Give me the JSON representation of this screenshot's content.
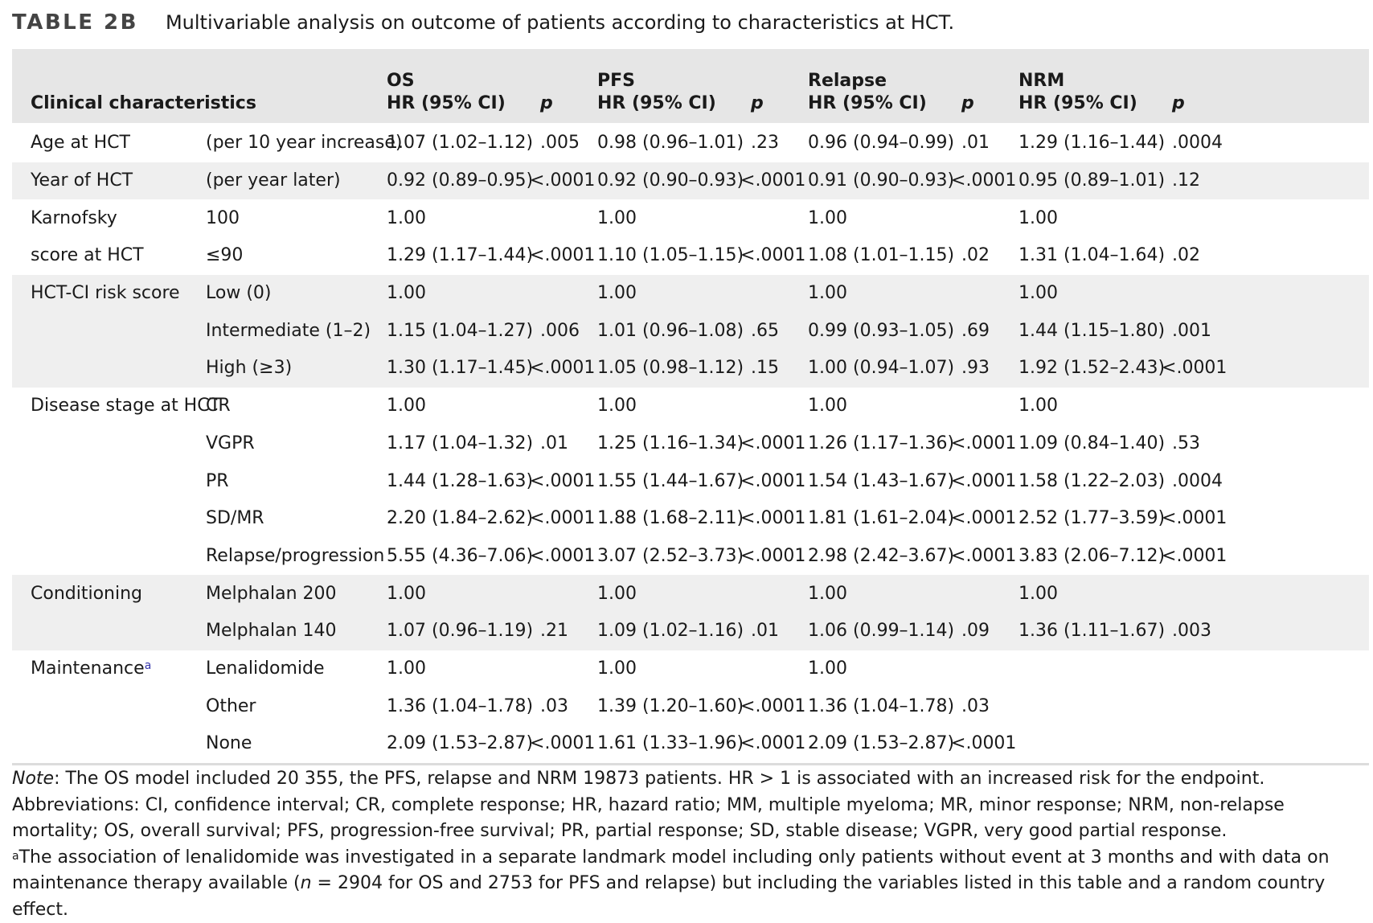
{
  "caption": {
    "label": "TABLE 2B",
    "title": "Multivariable analysis on outcome of patients according to characteristics at HCT."
  },
  "header": {
    "clinical_characteristics": "Clinical characteristics",
    "groups": [
      {
        "name": "OS",
        "hr": "HR (95% CI)",
        "p": "p"
      },
      {
        "name": "PFS",
        "hr": "HR (95% CI)",
        "p": "p"
      },
      {
        "name": "Relapse",
        "hr": "HR (95% CI)",
        "p": "p"
      },
      {
        "name": "NRM",
        "hr": "HR (95% CI)",
        "p": "p"
      }
    ]
  },
  "rows": [
    {
      "char": "Age at HCT",
      "sub": "(per 10 year increase)",
      "v": [
        "1.07 (1.02–1.12)",
        ".005",
        "0.98 (0.96–1.01)",
        ".23",
        "0.96 (0.94–0.99)",
        ".01",
        "1.29 (1.16–1.44)",
        ".0004"
      ]
    },
    {
      "char": "Year of HCT",
      "sub": "(per year later)",
      "v": [
        "0.92 (0.89–0.95)",
        "<.0001",
        "0.92 (0.90–0.93)",
        "<.0001",
        "0.91 (0.90–0.93)",
        "<.0001",
        "0.95 (0.89–1.01)",
        ".12"
      ]
    },
    {
      "char": "Karnofsky",
      "sub": "100",
      "v": [
        "1.00",
        "",
        "1.00",
        "",
        "1.00",
        "",
        "1.00",
        ""
      ]
    },
    {
      "char": "score at HCT",
      "sub": "≤90",
      "v": [
        "1.29 (1.17–1.44)",
        "<.0001",
        "1.10 (1.05–1.15)",
        "<.0001",
        "1.08 (1.01–1.15)",
        ".02",
        "1.31 (1.04–1.64)",
        ".02"
      ]
    },
    {
      "char": "HCT-CI risk score",
      "sub": "Low (0)",
      "v": [
        "1.00",
        "",
        "1.00",
        "",
        "1.00",
        "",
        "1.00",
        ""
      ]
    },
    {
      "char": "",
      "sub": "Intermediate (1–2)",
      "v": [
        "1.15 (1.04–1.27)",
        ".006",
        "1.01 (0.96–1.08)",
        ".65",
        "0.99 (0.93–1.05)",
        ".69",
        "1.44 (1.15–1.80)",
        ".001"
      ]
    },
    {
      "char": "",
      "sub": "High (≥3)",
      "v": [
        "1.30 (1.17–1.45)",
        "<.0001",
        "1.05 (0.98–1.12)",
        ".15",
        "1.00 (0.94–1.07)",
        ".93",
        "1.92 (1.52–2.43)",
        "<.0001"
      ]
    },
    {
      "char": "Disease stage at HCT",
      "sub": "CR",
      "v": [
        "1.00",
        "",
        "1.00",
        "",
        "1.00",
        "",
        "1.00",
        ""
      ]
    },
    {
      "char": "",
      "sub": "VGPR",
      "v": [
        "1.17 (1.04–1.32)",
        ".01",
        "1.25 (1.16–1.34)",
        "<.0001",
        "1.26 (1.17–1.36)",
        "<.0001",
        "1.09 (0.84–1.40)",
        ".53"
      ]
    },
    {
      "char": "",
      "sub": "PR",
      "v": [
        "1.44 (1.28–1.63)",
        "<.0001",
        "1.55 (1.44–1.67)",
        "<.0001",
        "1.54 (1.43–1.67)",
        "<.0001",
        "1.58 (1.22–2.03)",
        ".0004"
      ]
    },
    {
      "char": "",
      "sub": "SD/MR",
      "v": [
        "2.20 (1.84–2.62)",
        "<.0001",
        "1.88 (1.68–2.11)",
        "<.0001",
        "1.81 (1.61–2.04)",
        "<.0001",
        "2.52 (1.77–3.59)",
        "<.0001"
      ]
    },
    {
      "char": "",
      "sub": "Relapse/progression",
      "v": [
        "5.55 (4.36–7.06)",
        "<.0001",
        "3.07 (2.52–3.73)",
        "<.0001",
        "2.98 (2.42–3.67)",
        "<.0001",
        "3.83 (2.06–7.12)",
        "<.0001"
      ]
    },
    {
      "char": "Conditioning",
      "sub": "Melphalan 200",
      "v": [
        "1.00",
        "",
        "1.00",
        "",
        "1.00",
        "",
        "1.00",
        ""
      ]
    },
    {
      "char": "",
      "sub": "Melphalan 140",
      "v": [
        "1.07 (0.96–1.19)",
        ".21",
        "1.09 (1.02–1.16)",
        ".01",
        "1.06 (0.99–1.14)",
        ".09",
        "1.36 (1.11–1.67)",
        ".003"
      ]
    },
    {
      "char": "Maintenance",
      "sup": "a",
      "sub": "Lenalidomide",
      "v": [
        "1.00",
        "",
        "1.00",
        "",
        "1.00",
        "",
        "",
        ""
      ]
    },
    {
      "char": "",
      "sub": "Other",
      "v": [
        "1.36 (1.04–1.78)",
        ".03",
        "1.39 (1.20–1.60)",
        "<.0001",
        "1.36 (1.04–1.78)",
        ".03",
        "",
        ""
      ]
    },
    {
      "char": "",
      "sub": "None",
      "v": [
        "2.09 (1.53–2.87)",
        "<.0001",
        "1.61 (1.33–1.96)",
        "<.0001",
        "2.09 (1.53–2.87)",
        "<.0001",
        "",
        ""
      ]
    }
  ],
  "notes": {
    "note_label": "Note",
    "note_text": ": The OS model included 20 355, the PFS, relapse and NRM 19873 patients. HR > 1 is associated with an increased risk for the endpoint.",
    "abbreviations": "Abbreviations: CI, confidence interval; CR, complete response; HR, hazard ratio; MM, multiple myeloma; MR, minor response; NRM, non-relapse mortality; OS, overall survival; PFS, progression-free survival; PR, partial response; SD, stable disease; VGPR, very good partial response.",
    "footnote_mark": "a",
    "footnote_part1": "The association of lenalidomide was investigated in a separate landmark model including only patients without event at 3 months and with data on maintenance therapy available (",
    "footnote_n": "n",
    "footnote_part2": " = 2904 for OS and 2753 for PFS and relapse) but including the variables listed in this table and a random country effect."
  }
}
